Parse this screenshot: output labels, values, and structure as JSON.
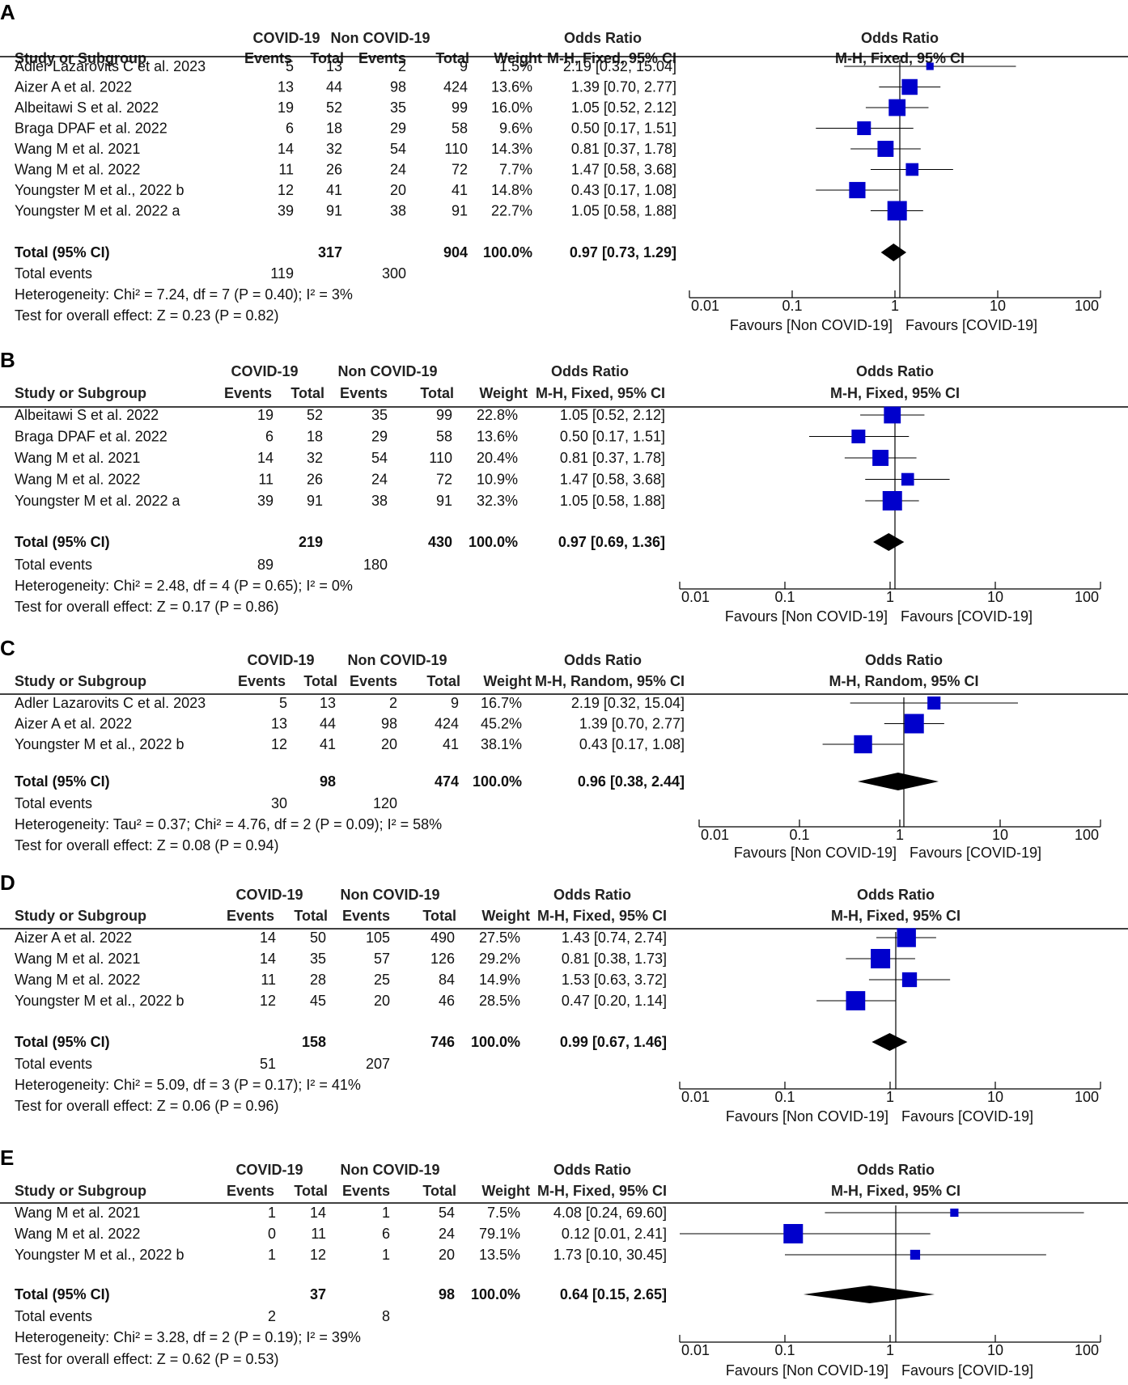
{
  "chart_data": [
    {
      "type": "forest",
      "label": "A",
      "headers": {
        "group1": "COVID-19",
        "group2": "Non COVID-19",
        "effect": "Odds Ratio",
        "study": "Study or Subgroup",
        "events": "Events",
        "total": "Total",
        "weight": "Weight",
        "method": "M-H, Fixed, 95% CI"
      },
      "studies": [
        {
          "name": "Adler Lazarovits C et al. 2023",
          "e1": "5",
          "t1": "13",
          "e2": "2",
          "t2": "9",
          "weight": "1.5%",
          "ci": "2.19 [0.32, 15.04]",
          "or": 2.19,
          "lo": 0.32,
          "hi": 15.04,
          "w": 1.5
        },
        {
          "name": "Aizer A et al. 2022",
          "e1": "13",
          "t1": "44",
          "e2": "98",
          "t2": "424",
          "weight": "13.6%",
          "ci": "1.39 [0.70, 2.77]",
          "or": 1.39,
          "lo": 0.7,
          "hi": 2.77,
          "w": 13.6
        },
        {
          "name": "Albeitawi S et al. 2022",
          "e1": "19",
          "t1": "52",
          "e2": "35",
          "t2": "99",
          "weight": "16.0%",
          "ci": "1.05 [0.52, 2.12]",
          "or": 1.05,
          "lo": 0.52,
          "hi": 2.12,
          "w": 16.0
        },
        {
          "name": "Braga DPAF et al. 2022",
          "e1": "6",
          "t1": "18",
          "e2": "29",
          "t2": "58",
          "weight": "9.6%",
          "ci": "0.50 [0.17, 1.51]",
          "or": 0.5,
          "lo": 0.17,
          "hi": 1.51,
          "w": 9.6
        },
        {
          "name": "Wang M et al. 2021",
          "e1": "14",
          "t1": "32",
          "e2": "54",
          "t2": "110",
          "weight": "14.3%",
          "ci": "0.81 [0.37, 1.78]",
          "or": 0.81,
          "lo": 0.37,
          "hi": 1.78,
          "w": 14.3
        },
        {
          "name": "Wang M et al. 2022",
          "e1": "11",
          "t1": "26",
          "e2": "24",
          "t2": "72",
          "weight": "7.7%",
          "ci": "1.47 [0.58, 3.68]",
          "or": 1.47,
          "lo": 0.58,
          "hi": 3.68,
          "w": 7.7
        },
        {
          "name": "Youngster M et al., 2022 b",
          "e1": "12",
          "t1": "41",
          "e2": "20",
          "t2": "41",
          "weight": "14.8%",
          "ci": "0.43 [0.17, 1.08]",
          "or": 0.43,
          "lo": 0.17,
          "hi": 1.08,
          "w": 14.8
        },
        {
          "name": "Youngster M et al. 2022 a",
          "e1": "39",
          "t1": "91",
          "e2": "38",
          "t2": "91",
          "weight": "22.7%",
          "ci": "1.05 [0.58, 1.88]",
          "or": 1.05,
          "lo": 0.58,
          "hi": 1.88,
          "w": 22.7
        }
      ],
      "total": {
        "label": "Total (95% CI)",
        "t1": "317",
        "t2": "904",
        "weight": "100.0%",
        "ci": "0.97 [0.73, 1.29]",
        "or": 0.97,
        "lo": 0.73,
        "hi": 1.29
      },
      "events": {
        "label": "Total events",
        "e1": "119",
        "e2": "300"
      },
      "heterogeneity": "Heterogeneity: Chi² = 7.24, df = 7 (P = 0.40); I² = 3%",
      "overall": "Test for overall effect: Z = 0.23 (P = 0.82)",
      "axis": {
        "ticks": [
          "0.01",
          "0.1",
          "1",
          "10",
          "100"
        ],
        "xlim": [
          0.01,
          100
        ],
        "scale": "log",
        "left_label": "Favours [Non COVID-19]",
        "right_label": "Favours [COVID-19]"
      }
    },
    {
      "type": "forest",
      "label": "B",
      "headers": {
        "group1": "COVID-19",
        "group2": "Non COVID-19",
        "effect": "Odds Ratio",
        "study": "Study or Subgroup",
        "events": "Events",
        "total": "Total",
        "weight": "Weight",
        "method": "M-H, Fixed, 95% CI"
      },
      "studies": [
        {
          "name": "Albeitawi S et al. 2022",
          "e1": "19",
          "t1": "52",
          "e2": "35",
          "t2": "99",
          "weight": "22.8%",
          "ci": "1.05 [0.52, 2.12]",
          "or": 1.05,
          "lo": 0.52,
          "hi": 2.12,
          "w": 22.8
        },
        {
          "name": "Braga DPAF et al. 2022",
          "e1": "6",
          "t1": "18",
          "e2": "29",
          "t2": "58",
          "weight": "13.6%",
          "ci": "0.50 [0.17, 1.51]",
          "or": 0.5,
          "lo": 0.17,
          "hi": 1.51,
          "w": 13.6
        },
        {
          "name": "Wang M et al. 2021",
          "e1": "14",
          "t1": "32",
          "e2": "54",
          "t2": "110",
          "weight": "20.4%",
          "ci": "0.81 [0.37, 1.78]",
          "or": 0.81,
          "lo": 0.37,
          "hi": 1.78,
          "w": 20.4
        },
        {
          "name": "Wang M et al. 2022",
          "e1": "11",
          "t1": "26",
          "e2": "24",
          "t2": "72",
          "weight": "10.9%",
          "ci": "1.47 [0.58, 3.68]",
          "or": 1.47,
          "lo": 0.58,
          "hi": 3.68,
          "w": 10.9
        },
        {
          "name": "Youngster M et al. 2022 a",
          "e1": "39",
          "t1": "91",
          "e2": "38",
          "t2": "91",
          "weight": "32.3%",
          "ci": "1.05 [0.58, 1.88]",
          "or": 1.05,
          "lo": 0.58,
          "hi": 1.88,
          "w": 32.3
        }
      ],
      "total": {
        "label": "Total (95% CI)",
        "t1": "219",
        "t2": "430",
        "weight": "100.0%",
        "ci": "0.97 [0.69, 1.36]",
        "or": 0.97,
        "lo": 0.69,
        "hi": 1.36
      },
      "events": {
        "label": "Total events",
        "e1": "89",
        "e2": "180"
      },
      "heterogeneity": "Heterogeneity: Chi² = 2.48, df = 4 (P = 0.65); I² = 0%",
      "overall": "Test for overall effect: Z = 0.17 (P = 0.86)",
      "axis": {
        "ticks": [
          "0.01",
          "0.1",
          "1",
          "10",
          "100"
        ],
        "xlim": [
          0.01,
          100
        ],
        "scale": "log",
        "left_label": "Favours [Non COVID-19]",
        "right_label": "Favours [COVID-19]"
      }
    },
    {
      "type": "forest",
      "label": "C",
      "headers": {
        "group1": "COVID-19",
        "group2": "Non COVID-19",
        "effect": "Odds Ratio",
        "study": "Study or Subgroup",
        "events": "Events",
        "total": "Total",
        "weight": "Weight",
        "method": "M-H, Random, 95% CI"
      },
      "studies": [
        {
          "name": "Adler Lazarovits C et al. 2023",
          "e1": "5",
          "t1": "13",
          "e2": "2",
          "t2": "9",
          "weight": "16.7%",
          "ci": "2.19 [0.32, 15.04]",
          "or": 2.19,
          "lo": 0.32,
          "hi": 15.04,
          "w": 16.7
        },
        {
          "name": "Aizer A et al. 2022",
          "e1": "13",
          "t1": "44",
          "e2": "98",
          "t2": "424",
          "weight": "45.2%",
          "ci": "1.39 [0.70, 2.77]",
          "or": 1.39,
          "lo": 0.7,
          "hi": 2.77,
          "w": 45.2
        },
        {
          "name": "Youngster M et al., 2022 b",
          "e1": "12",
          "t1": "41",
          "e2": "20",
          "t2": "41",
          "weight": "38.1%",
          "ci": "0.43 [0.17, 1.08]",
          "or": 0.43,
          "lo": 0.17,
          "hi": 1.08,
          "w": 38.1
        }
      ],
      "total": {
        "label": "Total (95% CI)",
        "t1": "98",
        "t2": "474",
        "weight": "100.0%",
        "ci": "0.96 [0.38, 2.44]",
        "or": 0.96,
        "lo": 0.38,
        "hi": 2.44
      },
      "events": {
        "label": "Total events",
        "e1": "30",
        "e2": "120"
      },
      "heterogeneity": "Heterogeneity: Tau² = 0.37; Chi² = 4.76, df = 2 (P = 0.09); I² = 58%",
      "overall": "Test for overall effect: Z = 0.08 (P = 0.94)",
      "axis": {
        "ticks": [
          "0.01",
          "0.1",
          "1",
          "10",
          "100"
        ],
        "xlim": [
          0.01,
          100
        ],
        "scale": "log",
        "left_label": "Favours [Non COVID-19]",
        "right_label": "Favours [COVID-19]"
      }
    },
    {
      "type": "forest",
      "label": "D",
      "headers": {
        "group1": "COVID-19",
        "group2": "Non COVID-19",
        "effect": "Odds Ratio",
        "study": "Study or Subgroup",
        "events": "Events",
        "total": "Total",
        "weight": "Weight",
        "method": "M-H, Fixed, 95% CI"
      },
      "studies": [
        {
          "name": "Aizer A et al. 2022",
          "e1": "14",
          "t1": "50",
          "e2": "105",
          "t2": "490",
          "weight": "27.5%",
          "ci": "1.43 [0.74, 2.74]",
          "or": 1.43,
          "lo": 0.74,
          "hi": 2.74,
          "w": 27.5
        },
        {
          "name": "Wang M et al. 2021",
          "e1": "14",
          "t1": "35",
          "e2": "57",
          "t2": "126",
          "weight": "29.2%",
          "ci": "0.81 [0.38, 1.73]",
          "or": 0.81,
          "lo": 0.38,
          "hi": 1.73,
          "w": 29.2
        },
        {
          "name": "Wang M et al. 2022",
          "e1": "11",
          "t1": "28",
          "e2": "25",
          "t2": "84",
          "weight": "14.9%",
          "ci": "1.53 [0.63, 3.72]",
          "or": 1.53,
          "lo": 0.63,
          "hi": 3.72,
          "w": 14.9
        },
        {
          "name": "Youngster M et al., 2022 b",
          "e1": "12",
          "t1": "45",
          "e2": "20",
          "t2": "46",
          "weight": "28.5%",
          "ci": "0.47 [0.20, 1.14]",
          "or": 0.47,
          "lo": 0.2,
          "hi": 1.14,
          "w": 28.5
        }
      ],
      "total": {
        "label": "Total (95% CI)",
        "t1": "158",
        "t2": "746",
        "weight": "100.0%",
        "ci": "0.99 [0.67, 1.46]",
        "or": 0.99,
        "lo": 0.67,
        "hi": 1.46
      },
      "events": {
        "label": "Total events",
        "e1": "51",
        "e2": "207"
      },
      "heterogeneity": "Heterogeneity: Chi² = 5.09, df = 3 (P = 0.17); I² = 41%",
      "overall": "Test for overall effect: Z = 0.06 (P = 0.96)",
      "axis": {
        "ticks": [
          "0.01",
          "0.1",
          "1",
          "10",
          "100"
        ],
        "xlim": [
          0.01,
          100
        ],
        "scale": "log",
        "left_label": "Favours [Non COVID-19]",
        "right_label": "Favours [COVID-19]"
      }
    },
    {
      "type": "forest",
      "label": "E",
      "headers": {
        "group1": "COVID-19",
        "group2": "Non COVID-19",
        "effect": "Odds Ratio",
        "study": "Study or Subgroup",
        "events": "Events",
        "total": "Total",
        "weight": "Weight",
        "method": "M-H, Fixed, 95% CI"
      },
      "studies": [
        {
          "name": "Wang M et al. 2021",
          "e1": "1",
          "t1": "14",
          "e2": "1",
          "t2": "54",
          "weight": "7.5%",
          "ci": "4.08 [0.24, 69.60]",
          "or": 4.08,
          "lo": 0.24,
          "hi": 69.6,
          "w": 7.5
        },
        {
          "name": "Wang M et al. 2022",
          "e1": "0",
          "t1": "11",
          "e2": "6",
          "t2": "24",
          "weight": "79.1%",
          "ci": "0.12 [0.01, 2.41]",
          "or": 0.12,
          "lo": 0.01,
          "hi": 2.41,
          "w": 79.1
        },
        {
          "name": "Youngster M et al., 2022 b",
          "e1": "1",
          "t1": "12",
          "e2": "1",
          "t2": "20",
          "weight": "13.5%",
          "ci": "1.73 [0.10, 30.45]",
          "or": 1.73,
          "lo": 0.1,
          "hi": 30.45,
          "w": 13.5
        }
      ],
      "total": {
        "label": "Total (95% CI)",
        "t1": "37",
        "t2": "98",
        "weight": "100.0%",
        "ci": "0.64 [0.15, 2.65]",
        "or": 0.64,
        "lo": 0.15,
        "hi": 2.65
      },
      "events": {
        "label": "Total events",
        "e1": "2",
        "e2": "8"
      },
      "heterogeneity": "Heterogeneity: Chi² = 3.28, df = 2 (P = 0.19); I² = 39%",
      "overall": "Test for overall effect: Z = 0.62 (P = 0.53)",
      "axis": {
        "ticks": [
          "0.01",
          "0.1",
          "1",
          "10",
          "100"
        ],
        "xlim": [
          0.01,
          100
        ],
        "scale": "log",
        "left_label": "Favours [Non COVID-19]",
        "right_label": "Favours [COVID-19]"
      }
    }
  ],
  "colors": {
    "marker": "#0000cc",
    "diamond": "#000000",
    "line": "#000000",
    "text": "#111111"
  }
}
